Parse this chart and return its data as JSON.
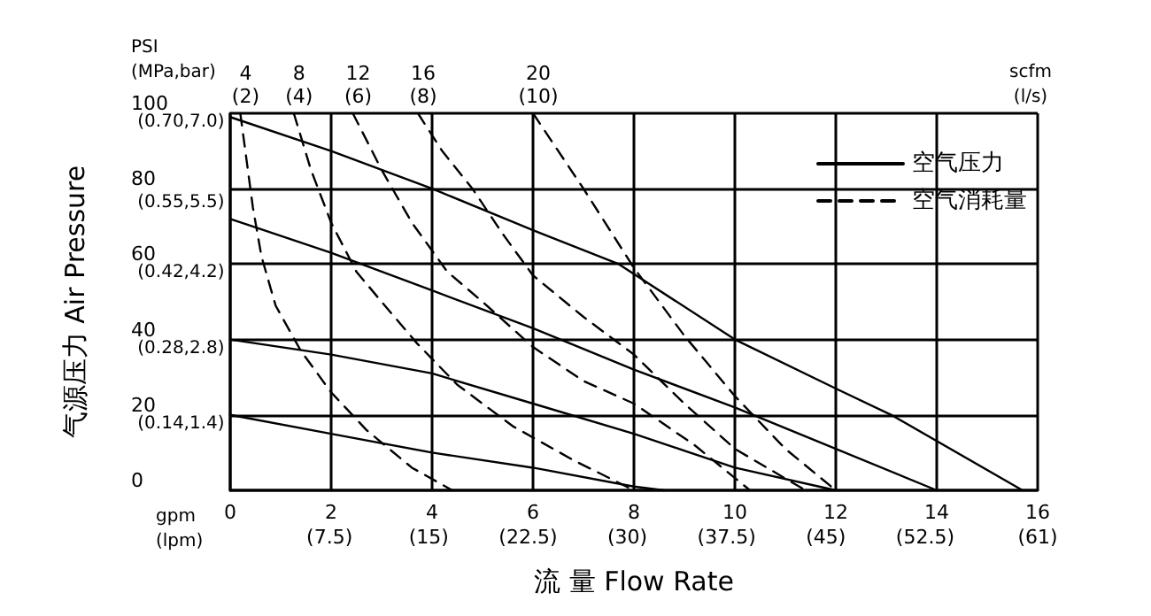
{
  "chart_data": {
    "type": "line",
    "xlabel": "流 量 Flow Rate",
    "ylabel": "气源压力 Air Pressure",
    "xlim": [
      0,
      16
    ],
    "xticks": [
      0,
      2,
      4,
      6,
      8,
      10,
      12,
      14,
      16
    ],
    "x2lim": [
      0,
      61
    ],
    "x2ticks": [
      {
        "value": 7.5,
        "label": "(7.5)"
      },
      {
        "value": 15,
        "label": "(15)"
      },
      {
        "value": 22.5,
        "label": "(22.5)"
      },
      {
        "value": 30,
        "label": "(30)"
      },
      {
        "value": 37.5,
        "label": "(37.5)"
      },
      {
        "value": 45,
        "label": "(45)"
      },
      {
        "value": 52.5,
        "label": "(52.5)"
      },
      {
        "value": 61,
        "label": "(61)"
      }
    ],
    "ylim": [
      0,
      100
    ],
    "yticks": [
      0,
      20,
      40,
      60,
      80,
      100
    ],
    "y2lim": [
      0,
      0.7
    ],
    "y2ticks": [
      {
        "value": 0.14,
        "label": "(0.14,"
      },
      {
        "value": 0.28,
        "label": "(0.28,"
      },
      {
        "value": 0.42,
        "label": "(0.42,"
      },
      {
        "value": 0.55,
        "label": "(0.55,"
      },
      {
        "value": 0.7,
        "label": "(0.70,"
      }
    ],
    "y3lim": [
      0,
      7
    ],
    "y3ticks": [
      {
        "value": 1.4,
        "label": "1.4)"
      },
      {
        "value": 2.8,
        "label": "2.8)"
      },
      {
        "value": 4.2,
        "label": "4.2)"
      },
      {
        "value": 5.5,
        "label": "5.5)"
      },
      {
        "value": 7,
        "label": "7.0)"
      }
    ],
    "grid": true,
    "legend": "top right",
    "marker": "none",
    "series": [
      {
        "name": "空气压力",
        "color": "#000000",
        "line_style": "solid",
        "x": [
          0,
          2,
          4,
          6,
          7.7,
          10,
          12,
          13.1,
          15.7
        ],
        "values": [
          99,
          90,
          80,
          69,
          60,
          40,
          27,
          20,
          0
        ]
      },
      {
        "color": "#000000",
        "line_style": "solid",
        "x": [
          0,
          2,
          4,
          6,
          8,
          10,
          12,
          14
        ],
        "values": [
          72,
          63,
          53,
          43,
          32,
          22,
          11,
          0
        ]
      },
      {
        "color": "#000000",
        "line_style": "solid",
        "x": [
          0,
          2,
          4,
          6,
          8,
          10,
          12
        ],
        "values": [
          40,
          36,
          31,
          23,
          15,
          6,
          0
        ]
      },
      {
        "color": "#000000",
        "line_style": "solid",
        "x": [
          0,
          2,
          4,
          6,
          8,
          8.6
        ],
        "values": [
          20,
          15,
          10,
          6,
          1,
          0
        ]
      },
      {
        "name": "空气消耗量",
        "color": "#000000",
        "line_style": "dashed",
        "x": [
          0.2,
          0.3,
          0.45,
          0.62,
          0.9,
          1.4,
          2,
          2.7,
          3.6,
          4.4
        ],
        "values": [
          100,
          90,
          75,
          62,
          49,
          37,
          26,
          16,
          6,
          0
        ]
      },
      {
        "color": "#000000",
        "line_style": "dashed",
        "x": [
          1.26,
          1.6,
          2,
          2.5,
          3,
          3.7,
          4.5,
          5.6,
          6.8,
          8
        ],
        "values": [
          100,
          85,
          71,
          58,
          50,
          39,
          28,
          17,
          8,
          0
        ]
      },
      {
        "color": "#000000",
        "line_style": "dashed",
        "x": [
          2.43,
          3,
          3.6,
          4.3,
          5,
          6,
          7,
          8,
          9.2,
          10.3
        ],
        "values": [
          100,
          85,
          71,
          58,
          50,
          38,
          29,
          23,
          12,
          0
        ]
      },
      {
        "color": "#000000",
        "line_style": "dashed",
        "x": [
          3.72,
          4.2,
          4.8,
          5.4,
          6,
          7,
          8,
          9,
          10,
          11.4
        ],
        "values": [
          100,
          90,
          80,
          68,
          57,
          46,
          36,
          23,
          11,
          0
        ]
      },
      {
        "color": "#000000",
        "line_style": "dashed",
        "x": [
          6,
          7,
          8,
          9,
          10,
          11,
          12
        ],
        "values": [
          100,
          80,
          59,
          41,
          25,
          11,
          0
        ]
      }
    ],
    "annotations": [
      "PSI\n(MPa,bar)",
      "gpm\n(lpm)",
      "scfm\n(l/s)",
      {
        "text": "4\n(2)",
        "x": 0.2,
        "y": 100
      },
      {
        "text": "8\n(4)",
        "x": 1.26,
        "y": 100
      },
      {
        "text": "12\n(6)",
        "x": 2.43,
        "y": 100
      },
      {
        "text": "16\n(8)",
        "x": 3.72,
        "y": 100
      },
      {
        "text": "20\n(10)",
        "x": 6,
        "y": 100
      }
    ]
  }
}
